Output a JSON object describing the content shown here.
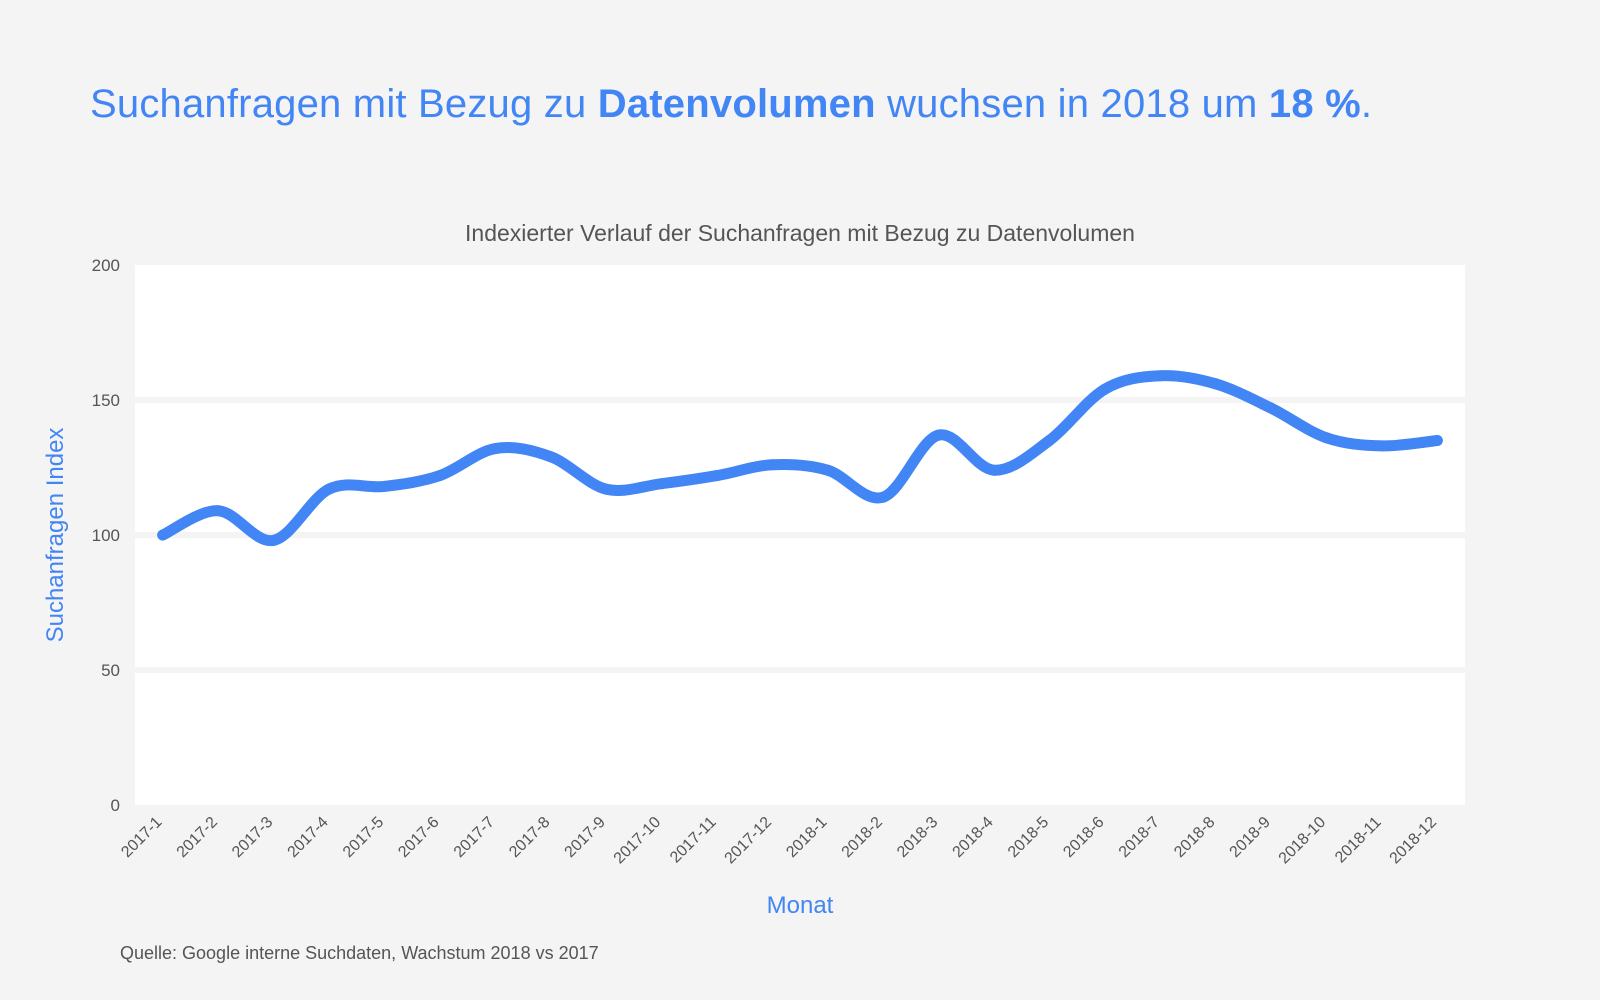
{
  "headline": {
    "part1": "Suchanfragen mit Bezug zu ",
    "bold1": "Datenvolumen",
    "part2": " wuchsen in 2018 um ",
    "bold2": "18 %",
    "part3": "."
  },
  "source": "Quelle: Google interne Suchdaten, Wachstum 2018 vs 2017",
  "colors": {
    "accent": "#4285f4",
    "text": "#555555",
    "background": "#f4f4f4",
    "plot_background": "#ffffff"
  },
  "chart_data": {
    "type": "line",
    "title": "Indexierter Verlauf der Suchanfragen mit Bezug zu Datenvolumen",
    "xlabel": "Monat",
    "ylabel": "Suchanfragen Index",
    "ylim": [
      0,
      200
    ],
    "yticks": [
      0,
      50,
      100,
      150,
      200
    ],
    "grid": true,
    "categories": [
      "2017-1",
      "2017-2",
      "2017-3",
      "2017-4",
      "2017-5",
      "2017-6",
      "2017-7",
      "2017-8",
      "2017-9",
      "2017-10",
      "2017-11",
      "2017-12",
      "2018-1",
      "2018-2",
      "2018-3",
      "2018-4",
      "2018-5",
      "2018-6",
      "2018-7",
      "2018-8",
      "2018-9",
      "2018-10",
      "2018-11",
      "2018-12"
    ],
    "series": [
      {
        "values": [
          100,
          109,
          98,
          117,
          118,
          122,
          132,
          129,
          117,
          119,
          122,
          126,
          124,
          114,
          137,
          124,
          135,
          154,
          159,
          156,
          147,
          136,
          133,
          135
        ]
      }
    ]
  }
}
